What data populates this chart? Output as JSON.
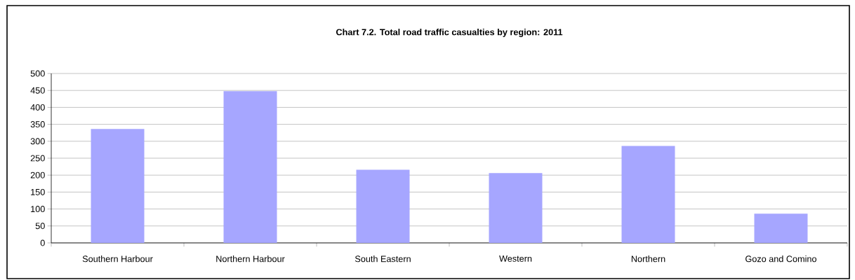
{
  "chart_data": {
    "type": "bar",
    "title": "Chart 7.2. Total road traffic casualties by region: 2011",
    "categories": [
      "Southern Harbour",
      "Northern Harbour",
      "South Eastern",
      "Western",
      "Northern",
      "Gozo and Comino"
    ],
    "values": [
      336,
      448,
      216,
      206,
      286,
      86
    ],
    "color": "#a6a6ff",
    "ylim": [
      0,
      500
    ],
    "yticks": [
      0,
      50,
      100,
      150,
      200,
      250,
      300,
      350,
      400,
      450,
      500
    ],
    "grid": "y"
  }
}
